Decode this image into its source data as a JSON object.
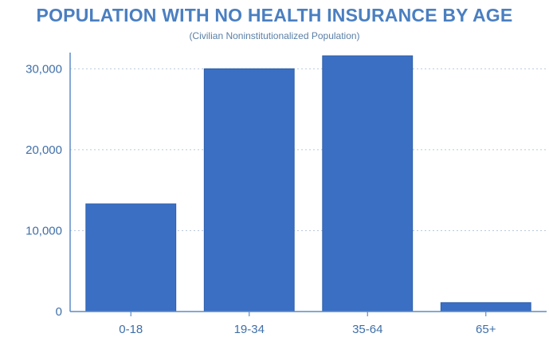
{
  "chart_data": {
    "type": "bar",
    "title": "POPULATION WITH NO HEALTH INSURANCE BY AGE",
    "subtitle": "(Civilian Noninstitutionalized Population)",
    "categories": [
      "0-18",
      "19-34",
      "35-64",
      "65+"
    ],
    "values": [
      13300,
      30000,
      31600,
      1100
    ],
    "yticks": [
      0,
      10000,
      20000,
      30000
    ],
    "ytick_labels": [
      "0",
      "10,000",
      "20,000",
      "30,000"
    ],
    "ylim": [
      0,
      32000
    ],
    "xlabel": "",
    "ylabel": "",
    "grid": "horizontal dotted",
    "bar_color": "#3a6fc4",
    "axis_color": "#5b8cc8"
  }
}
